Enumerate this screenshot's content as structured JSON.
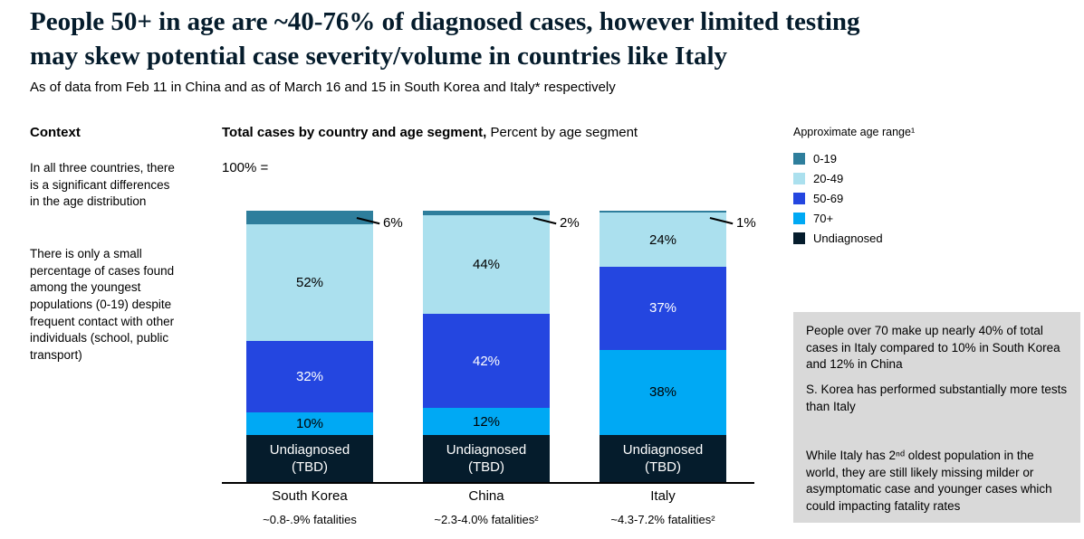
{
  "page": {
    "title_lines": [
      "People 50+ in age are ~40-76% of diagnosed cases, however limited testing",
      "may skew potential case severity/volume in countries like Italy"
    ],
    "subtitle": "As of data from Feb 11 in China and as of March 16 and 15 in South Korea and Italy* respectively"
  },
  "context": {
    "heading": "Context",
    "paragraphs": [
      "In all three countries, there is a significant differences in the age distribution",
      "There is only a small percentage of cases found among the youngest populations (0-19) despite frequent contact with other individuals (school, public transport)"
    ]
  },
  "chart_data": {
    "type": "bar",
    "stacked": true,
    "title_bold": "Total cases by country and age segment,",
    "title_rest": " Percent by age segment",
    "hundred_label": "100% =",
    "categories": [
      "South Korea",
      "China",
      "Italy"
    ],
    "footnotes": [
      "~0.8-.9% fatalities",
      "~2.3-4.0% fatalities²",
      "~4.3-7.2% fatalities²"
    ],
    "ylim": [
      0,
      100
    ],
    "series": [
      {
        "name": "0-19",
        "color": "#2e7e9c",
        "values": [
          6,
          2,
          1
        ],
        "label_outside": true
      },
      {
        "name": "20-49",
        "color": "#abe0ee",
        "values": [
          52,
          44,
          24
        ]
      },
      {
        "name": "50-69",
        "color": "#2446e0",
        "values": [
          32,
          42,
          37
        ],
        "text_color": "#ffffff"
      },
      {
        "name": "70+",
        "color": "#00a9f4",
        "values": [
          10,
          12,
          38
        ]
      },
      {
        "name": "Undiagnosed",
        "color": "#051c2c",
        "label_lines": [
          "Undiagnosed",
          "(TBD)"
        ],
        "text_color": "#ffffff"
      }
    ]
  },
  "legend": {
    "title": "Approximate age range¹",
    "items": [
      {
        "label": "0-19",
        "color": "#2e7e9c"
      },
      {
        "label": "20-49",
        "color": "#abe0ee"
      },
      {
        "label": "50-69",
        "color": "#2446e0"
      },
      {
        "label": "70+",
        "color": "#00a9f4"
      },
      {
        "label": "Undiagnosed",
        "color": "#051c2c"
      }
    ]
  },
  "insights": {
    "paragraphs": [
      "People over 70 make up nearly 40% of total cases in Italy compared to 10% in South Korea and 12% in China",
      "S. Korea has performed substantially more tests than Italy",
      "While Italy has 2ⁿᵈ oldest population in the world, they are still likely missing milder or asymptomatic case and younger cases which could impacting fatality rates"
    ]
  }
}
